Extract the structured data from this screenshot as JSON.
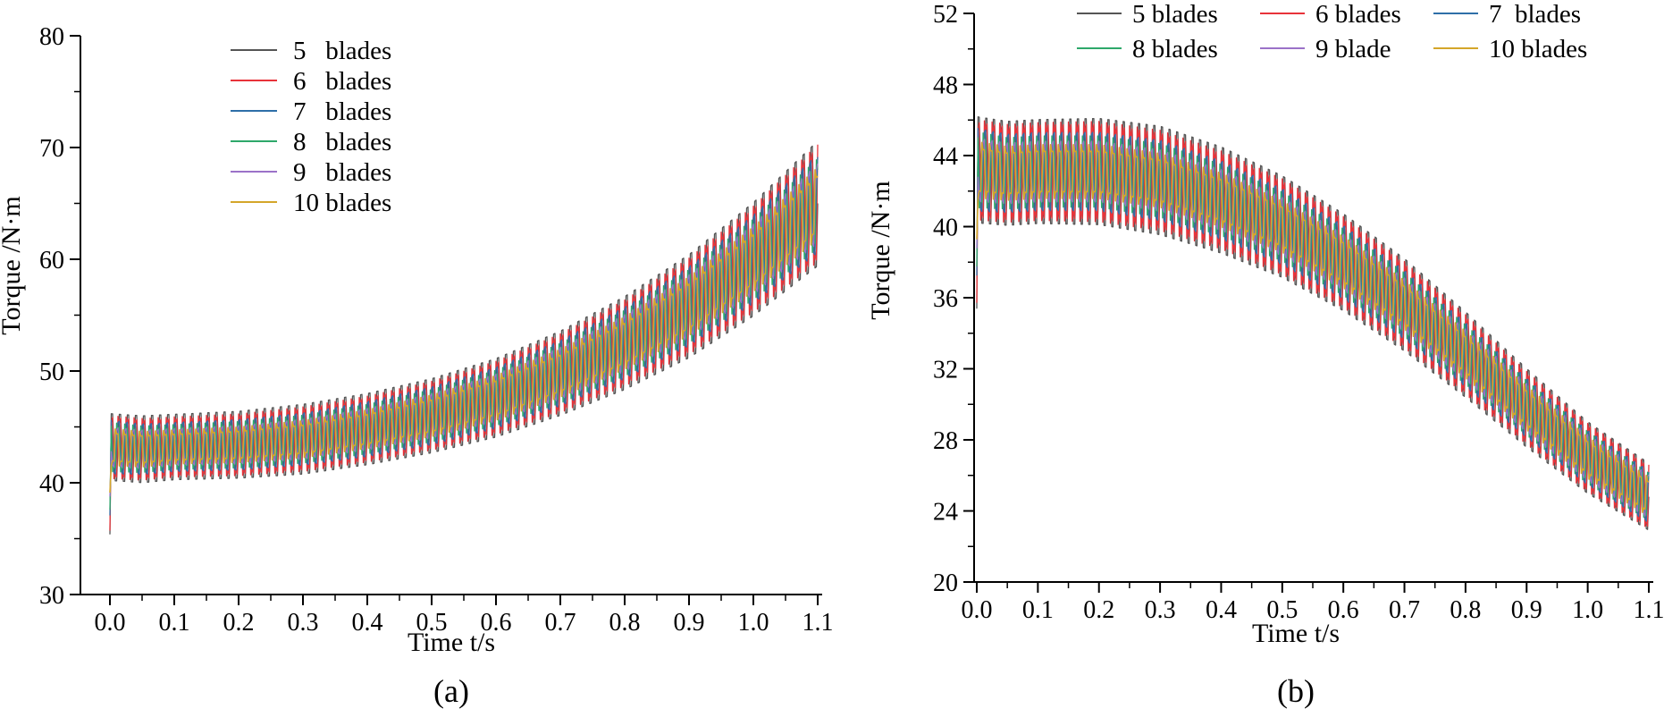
{
  "chart_data": [
    {
      "type": "line",
      "caption": "(a)",
      "xlabel": "Time t/s",
      "ylabel": "Torque /N·m",
      "xlim": [
        -0.03,
        1.1
      ],
      "ylim": [
        30,
        80
      ],
      "xticks": [
        "0.0",
        "0.1",
        "0.2",
        "0.3",
        "0.4",
        "0.5",
        "0.6",
        "0.7",
        "0.8",
        "0.9",
        "1.0",
        "1.1"
      ],
      "yticks": [
        "30",
        "40",
        "50",
        "60",
        "70",
        "80"
      ],
      "x": [
        0.0,
        0.05,
        0.1,
        0.2,
        0.3,
        0.4,
        0.5,
        0.6,
        0.7,
        0.8,
        0.9,
        1.0,
        1.1
      ],
      "series": [
        {
          "name": "5   blades",
          "legend": "5   blades",
          "color": "#555555",
          "mean": [
            43.2,
            43.0,
            43.2,
            43.4,
            43.9,
            44.8,
            46.0,
            47.6,
            49.8,
            52.5,
            55.8,
            60.0,
            65.0
          ],
          "amplitude": [
            4.6,
            4.6,
            4.5,
            4.6,
            4.8,
            4.9,
            5.1,
            5.4,
            5.8,
            6.4,
            7.1,
            7.8,
            8.6
          ]
        },
        {
          "name": "6   blades",
          "legend": "6   blades",
          "color": "#e8333a",
          "mean": [
            43.2,
            43.0,
            43.2,
            43.4,
            43.9,
            44.8,
            46.0,
            47.6,
            49.8,
            52.5,
            55.8,
            60.0,
            65.0
          ],
          "amplitude": [
            4.4,
            4.3,
            4.2,
            4.3,
            4.5,
            4.6,
            4.8,
            5.1,
            5.5,
            6.0,
            6.7,
            7.4,
            8.2
          ]
        },
        {
          "name": "7   blades",
          "legend": "7   blades",
          "color": "#2e6fa8",
          "mean": [
            43.2,
            43.0,
            43.2,
            43.4,
            43.9,
            44.8,
            46.0,
            47.6,
            49.8,
            52.5,
            55.8,
            60.0,
            65.0
          ],
          "amplitude": [
            3.6,
            3.4,
            3.3,
            3.4,
            3.5,
            3.7,
            3.9,
            4.1,
            4.4,
            4.8,
            5.3,
            5.9,
            6.6
          ]
        },
        {
          "name": "8   blades",
          "legend": "8   blades",
          "color": "#2ea86a",
          "mean": [
            43.2,
            43.0,
            43.2,
            43.4,
            43.9,
            44.8,
            46.0,
            47.6,
            49.8,
            52.5,
            55.8,
            60.0,
            65.0
          ],
          "amplitude": [
            3.3,
            3.1,
            3.0,
            3.1,
            3.2,
            3.3,
            3.5,
            3.7,
            4.0,
            4.4,
            4.9,
            5.4,
            6.0
          ]
        },
        {
          "name": "9   blades",
          "legend": "9   blades",
          "color": "#9b72c8",
          "mean": [
            43.2,
            43.0,
            43.2,
            43.4,
            43.9,
            44.8,
            46.0,
            47.6,
            49.8,
            52.5,
            55.8,
            60.0,
            65.0
          ],
          "amplitude": [
            2.6,
            2.5,
            2.4,
            2.5,
            2.6,
            2.7,
            2.9,
            3.1,
            3.4,
            3.7,
            4.1,
            4.6,
            5.2
          ]
        },
        {
          "name": "10 blades",
          "legend": "10 blades",
          "color": "#d4a62a",
          "mean": [
            43.2,
            43.0,
            43.2,
            43.4,
            43.9,
            44.8,
            46.0,
            47.6,
            49.8,
            52.5,
            55.8,
            60.0,
            65.0
          ],
          "amplitude": [
            2.4,
            2.3,
            2.2,
            2.3,
            2.4,
            2.5,
            2.7,
            2.9,
            3.1,
            3.4,
            3.8,
            4.2,
            4.7
          ]
        }
      ]
    },
    {
      "type": "line",
      "caption": "(b)",
      "xlabel": "Time t/s",
      "ylabel": "Torque /N·m",
      "xlim": [
        -0.03,
        1.1
      ],
      "ylim": [
        20,
        52
      ],
      "xticks": [
        "0.0",
        "0.1",
        "0.2",
        "0.3",
        "0.4",
        "0.5",
        "0.6",
        "0.7",
        "0.8",
        "0.9",
        "1.0",
        "1.1"
      ],
      "yticks": [
        "20",
        "24",
        "28",
        "32",
        "36",
        "40",
        "44",
        "48",
        "52"
      ],
      "x": [
        0.0,
        0.05,
        0.1,
        0.2,
        0.3,
        0.4,
        0.5,
        0.6,
        0.7,
        0.8,
        0.9,
        1.0,
        1.1
      ],
      "series": [
        {
          "name": "5 blades",
          "legend": "5 blades",
          "color": "#555555",
          "mean": [
            43.2,
            43.0,
            43.1,
            43.1,
            42.6,
            41.5,
            40.0,
            38.0,
            35.6,
            32.8,
            29.8,
            27.0,
            24.8
          ],
          "amplitude": [
            4.6,
            4.5,
            4.5,
            4.6,
            4.7,
            4.6,
            4.4,
            4.2,
            4.0,
            3.7,
            3.4,
            3.1,
            2.9
          ]
        },
        {
          "name": "6 blades",
          "legend": "6 blades",
          "color": "#e8333a",
          "mean": [
            43.2,
            43.0,
            43.1,
            43.1,
            42.6,
            41.5,
            40.0,
            38.0,
            35.6,
            32.8,
            29.8,
            27.0,
            24.8
          ],
          "amplitude": [
            4.4,
            4.3,
            4.3,
            4.4,
            4.4,
            4.3,
            4.2,
            4.0,
            3.8,
            3.5,
            3.2,
            3.0,
            2.8
          ]
        },
        {
          "name": "7  blades",
          "legend": "7  blades",
          "color": "#2e6fa8",
          "mean": [
            43.2,
            43.0,
            43.1,
            43.1,
            42.6,
            41.5,
            40.0,
            38.0,
            35.6,
            32.8,
            29.8,
            27.0,
            24.8
          ],
          "amplitude": [
            3.5,
            3.3,
            3.3,
            3.3,
            3.4,
            3.3,
            3.2,
            3.1,
            2.9,
            2.7,
            2.5,
            2.3,
            2.2
          ]
        },
        {
          "name": "8 blades",
          "legend": "8 blades",
          "color": "#2ea86a",
          "mean": [
            43.2,
            43.0,
            43.1,
            43.1,
            42.6,
            41.5,
            40.0,
            38.0,
            35.6,
            32.8,
            29.8,
            27.0,
            24.8
          ],
          "amplitude": [
            3.2,
            3.0,
            3.0,
            3.0,
            3.1,
            3.0,
            2.9,
            2.8,
            2.7,
            2.5,
            2.3,
            2.2,
            2.0
          ]
        },
        {
          "name": "9 blade",
          "legend": "9 blade",
          "color": "#9b72c8",
          "mean": [
            43.2,
            43.0,
            43.1,
            43.1,
            42.6,
            41.5,
            40.0,
            38.0,
            35.6,
            32.8,
            29.8,
            27.0,
            24.8
          ],
          "amplitude": [
            2.6,
            2.5,
            2.5,
            2.5,
            2.5,
            2.5,
            2.4,
            2.3,
            2.2,
            2.1,
            2.0,
            1.9,
            1.8
          ]
        },
        {
          "name": "10 blades",
          "legend": "10 blades",
          "color": "#d4a62a",
          "mean": [
            43.2,
            43.0,
            43.1,
            43.1,
            42.6,
            41.5,
            40.0,
            38.0,
            35.6,
            32.8,
            29.8,
            27.0,
            24.8
          ],
          "amplitude": [
            2.3,
            2.2,
            2.2,
            2.2,
            2.2,
            2.2,
            2.1,
            2.1,
            2.0,
            1.9,
            1.8,
            1.7,
            1.6
          ]
        }
      ]
    }
  ]
}
